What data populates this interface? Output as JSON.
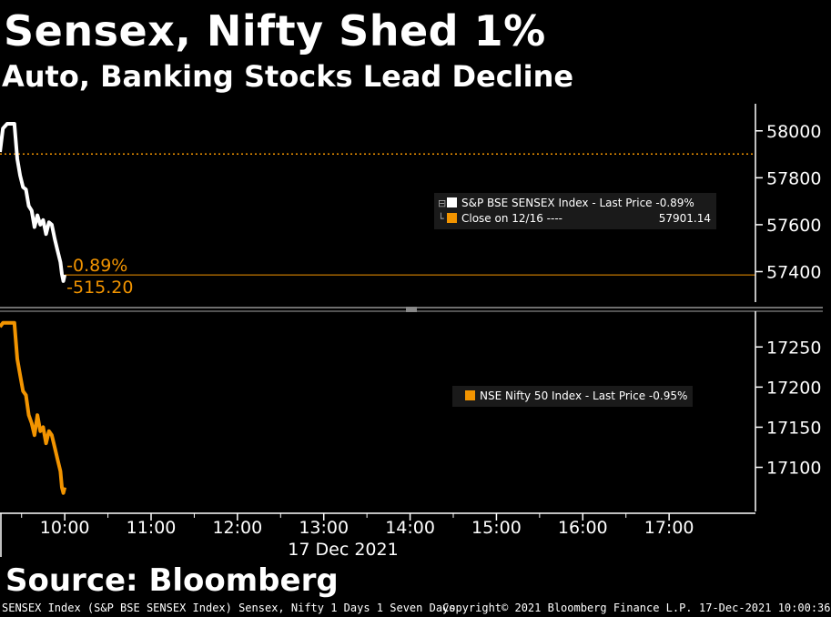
{
  "header": {
    "title": "Sensex, Nifty Shed 1%",
    "subtitle": "Auto, Banking Stocks Lead Decline"
  },
  "source": "Source: Bloomberg",
  "footer": {
    "left": "SENSEX Index (S&P BSE SENSEX Index) Sensex, Nifty 1 Days 1 Seven Days",
    "center": "Copyright© 2021 Bloomberg Finance L.P.",
    "right": "17-Dec-2021 10:00:36"
  },
  "colors": {
    "background": "#000000",
    "sensex_line": "#ffffff",
    "nifty_line": "#f29400",
    "reference": "#f29400",
    "panel_divider": "#6e6e6e"
  },
  "chart_data": [
    {
      "type": "line",
      "panel": "top",
      "series": [
        {
          "name": "S&P BSE SENSEX Index - Last Price -0.89%",
          "color": "#ffffff",
          "x": [
            "09:15",
            "09:17",
            "09:20",
            "09:25",
            "09:27",
            "09:29",
            "09:31",
            "09:33",
            "09:35",
            "09:37",
            "09:39",
            "09:41",
            "09:43",
            "09:45",
            "09:47",
            "09:49",
            "09:51",
            "09:53",
            "09:55",
            "09:57",
            "09:58",
            "09:59",
            "10:00"
          ],
          "values": [
            57910,
            58010,
            58030,
            58030,
            57880,
            57810,
            57760,
            57750,
            57680,
            57660,
            57590,
            57640,
            57600,
            57620,
            57560,
            57610,
            57600,
            57540,
            57490,
            57440,
            57390,
            57360,
            57386
          ]
        }
      ],
      "reference_line": {
        "label": "Close on 12/16 ----",
        "value": 57901.14
      },
      "current_value": 57386,
      "change_pct_label": "-0.89%",
      "change_abs_label": "-515.20",
      "ylim": [
        57270,
        58100
      ],
      "y_ticks": [
        "58000",
        "57800",
        "57600",
        "57400"
      ],
      "legend": {
        "placement": "right",
        "entries": [
          {
            "label": "S&P BSE SENSEX Index - Last Price -0.89%",
            "value": ""
          },
          {
            "label": "Close on 12/16 ----",
            "value": "57901.14"
          }
        ]
      }
    },
    {
      "type": "line",
      "panel": "bottom",
      "series": [
        {
          "name": "NSE Nifty 50 Index - Last Price -0.95%",
          "color": "#f29400",
          "x": [
            "09:15",
            "09:17",
            "09:20",
            "09:25",
            "09:27",
            "09:29",
            "09:31",
            "09:33",
            "09:35",
            "09:37",
            "09:39",
            "09:41",
            "09:43",
            "09:45",
            "09:47",
            "09:49",
            "09:51",
            "09:53",
            "09:55",
            "09:57",
            "09:58",
            "09:59",
            "10:00"
          ],
          "values": [
            17275,
            17280,
            17280,
            17280,
            17235,
            17215,
            17195,
            17190,
            17165,
            17155,
            17140,
            17165,
            17145,
            17150,
            17130,
            17145,
            17140,
            17125,
            17110,
            17095,
            17075,
            17068,
            17075
          ]
        }
      ],
      "ylim": [
        17045,
        17290
      ],
      "y_ticks": [
        "17250",
        "17200",
        "17150",
        "17100"
      ],
      "legend": {
        "placement": "right",
        "entries": [
          {
            "label": "NSE Nifty 50 Index - Last Price -0.95%"
          }
        ]
      }
    }
  ],
  "x_axis": {
    "ticks": [
      "10:00",
      "11:00",
      "12:00",
      "13:00",
      "14:00",
      "15:00",
      "16:00",
      "17:00"
    ],
    "date_label": "17 Dec 2021",
    "range": [
      "09:15",
      "18:00"
    ]
  }
}
